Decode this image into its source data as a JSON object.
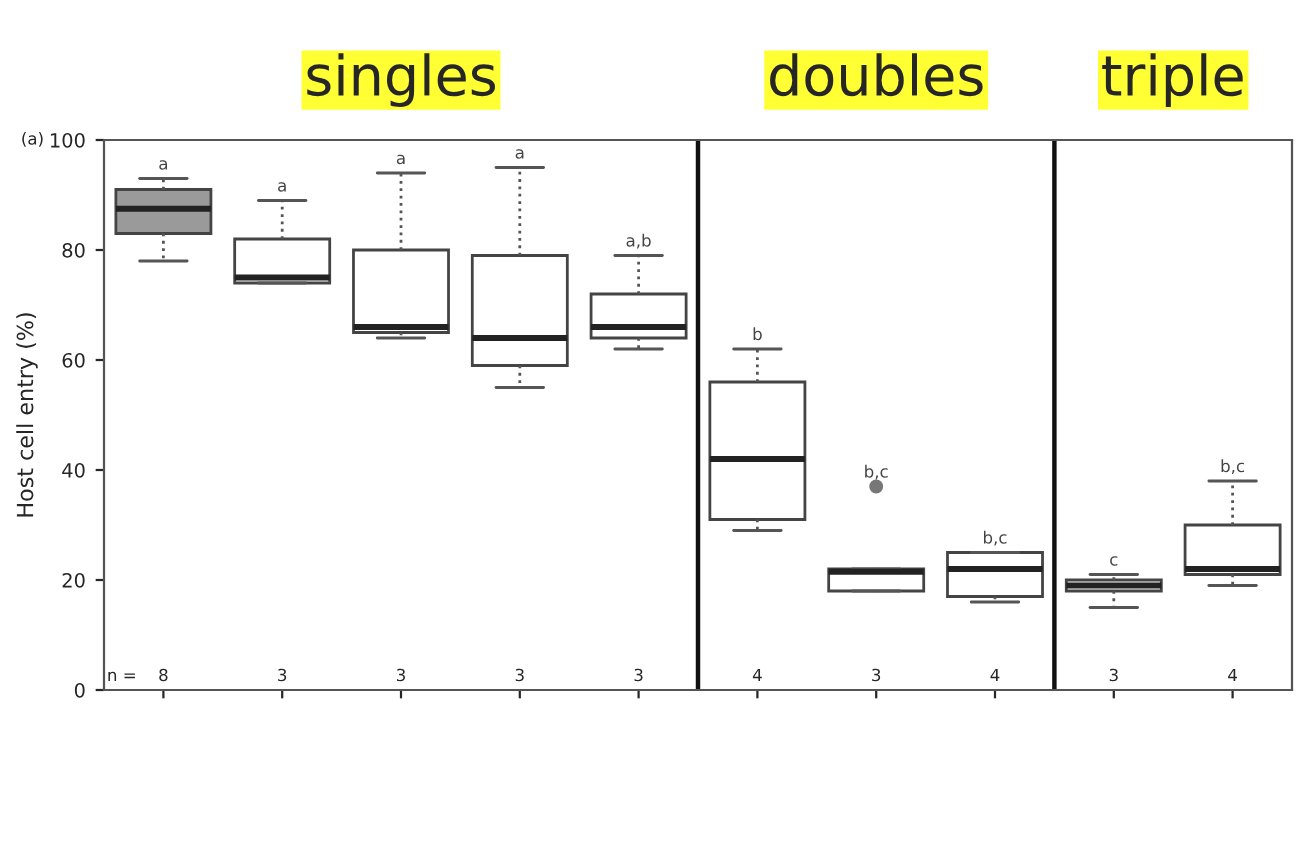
{
  "chart_data": {
    "type": "box",
    "ylabel": "Host cell entry (%)",
    "categories": [
      null,
      null,
      null,
      null,
      null,
      null,
      null,
      null,
      null,
      null
    ],
    "boxes": [
      {
        "low": 78,
        "q1": 83,
        "median": 87.5,
        "q3": 91,
        "high": 93
      },
      {
        "low": 74,
        "q1": 74,
        "median": 75,
        "q3": 82,
        "high": 89
      },
      {
        "low": 64,
        "q1": 65,
        "median": 66,
        "q3": 80,
        "high": 94
      },
      {
        "low": 55,
        "q1": 59,
        "median": 64,
        "q3": 79,
        "high": 95
      },
      {
        "low": 62,
        "q1": 64,
        "median": 66,
        "q3": 72,
        "high": 79
      },
      {
        "low": 29,
        "q1": 31,
        "median": 42,
        "q3": 56,
        "high": 62
      },
      {
        "low": 18,
        "q1": 18,
        "median": 21.5,
        "q3": 22,
        "high": 22,
        "outliers": [
          37
        ]
      },
      {
        "low": 16,
        "q1": 17,
        "median": 22,
        "q3": 25,
        "high": 25
      },
      {
        "low": 15,
        "q1": 18,
        "median": 19,
        "q3": 20,
        "high": 21
      },
      {
        "low": 19,
        "q1": 21,
        "median": 22,
        "q3": 30,
        "high": 38
      }
    ],
    "colors": [
      "#9a9a9a",
      "#ffffff",
      "#ffffff",
      "#ffffff",
      "#ffffff",
      "#ffffff",
      "#ffffff",
      "#ffffff",
      "#ffffff",
      "#ffffff"
    ],
    "ylim": [
      0,
      100
    ],
    "yticks": [
      0,
      20,
      40,
      60,
      80,
      100
    ],
    "annotations": [
      "singles",
      "doubles",
      "triple",
      "(a)",
      "n =",
      "a",
      "8",
      "a",
      "3",
      "a",
      "3",
      "a",
      "3",
      "a,b",
      "3",
      "b",
      "4",
      "b,c",
      "3",
      "b,c",
      "4",
      "c",
      "3",
      "b,c",
      "4"
    ]
  }
}
